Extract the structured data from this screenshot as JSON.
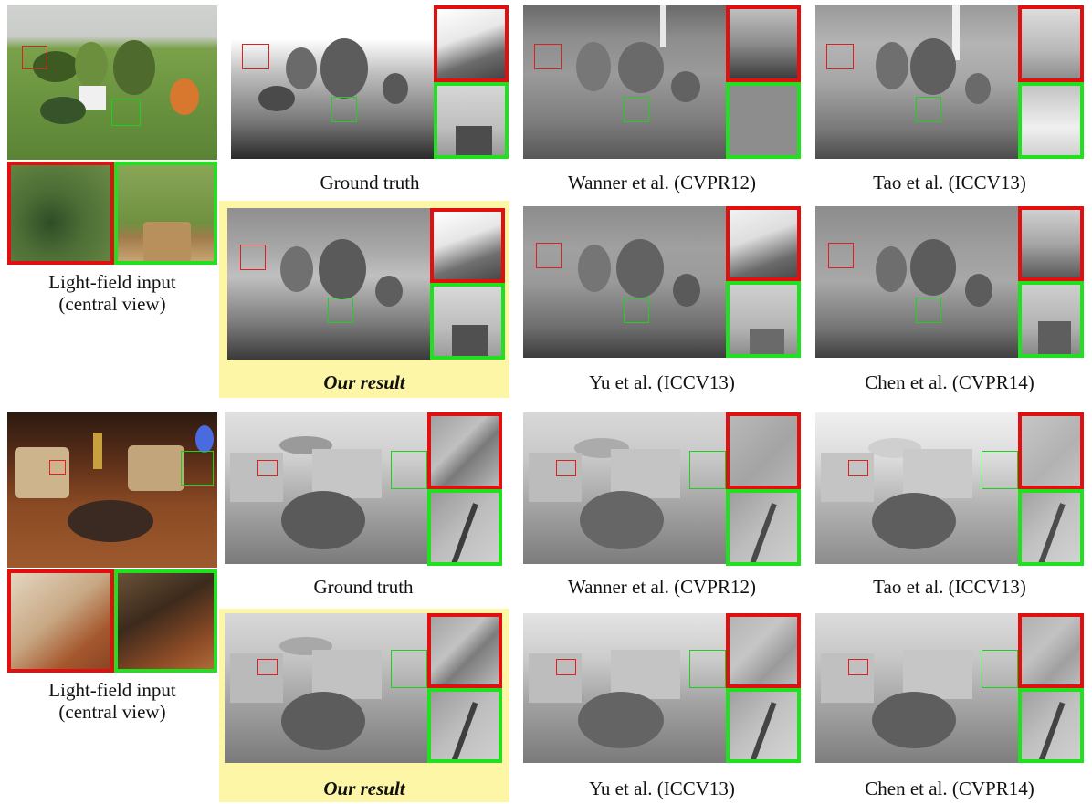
{
  "figure": {
    "scene1": {
      "input_caption": "Light-field  input\n(central view)",
      "captions": {
        "ground_truth": "Ground truth",
        "wanner": "Wanner et al. (CVPR12)",
        "tao": "Tao et al. (ICCV13)",
        "ours": "Our result",
        "yu": "Yu et al. (ICCV13)",
        "chen": "Chen et al. (CVPR14)"
      }
    },
    "scene2": {
      "input_caption": "Light-field  input\n(central view)",
      "captions": {
        "ground_truth": "Ground truth",
        "wanner": "Wanner et al. (CVPR12)",
        "tao": "Tao et al. (ICCV13)",
        "ours": "Our result",
        "yu": "Yu et al. (ICCV13)",
        "chen": "Chen et al. (CVPR14)"
      }
    },
    "colors": {
      "highlight": "#fdf6a6",
      "red_box": "#e01010",
      "green_box": "#20e020"
    }
  }
}
